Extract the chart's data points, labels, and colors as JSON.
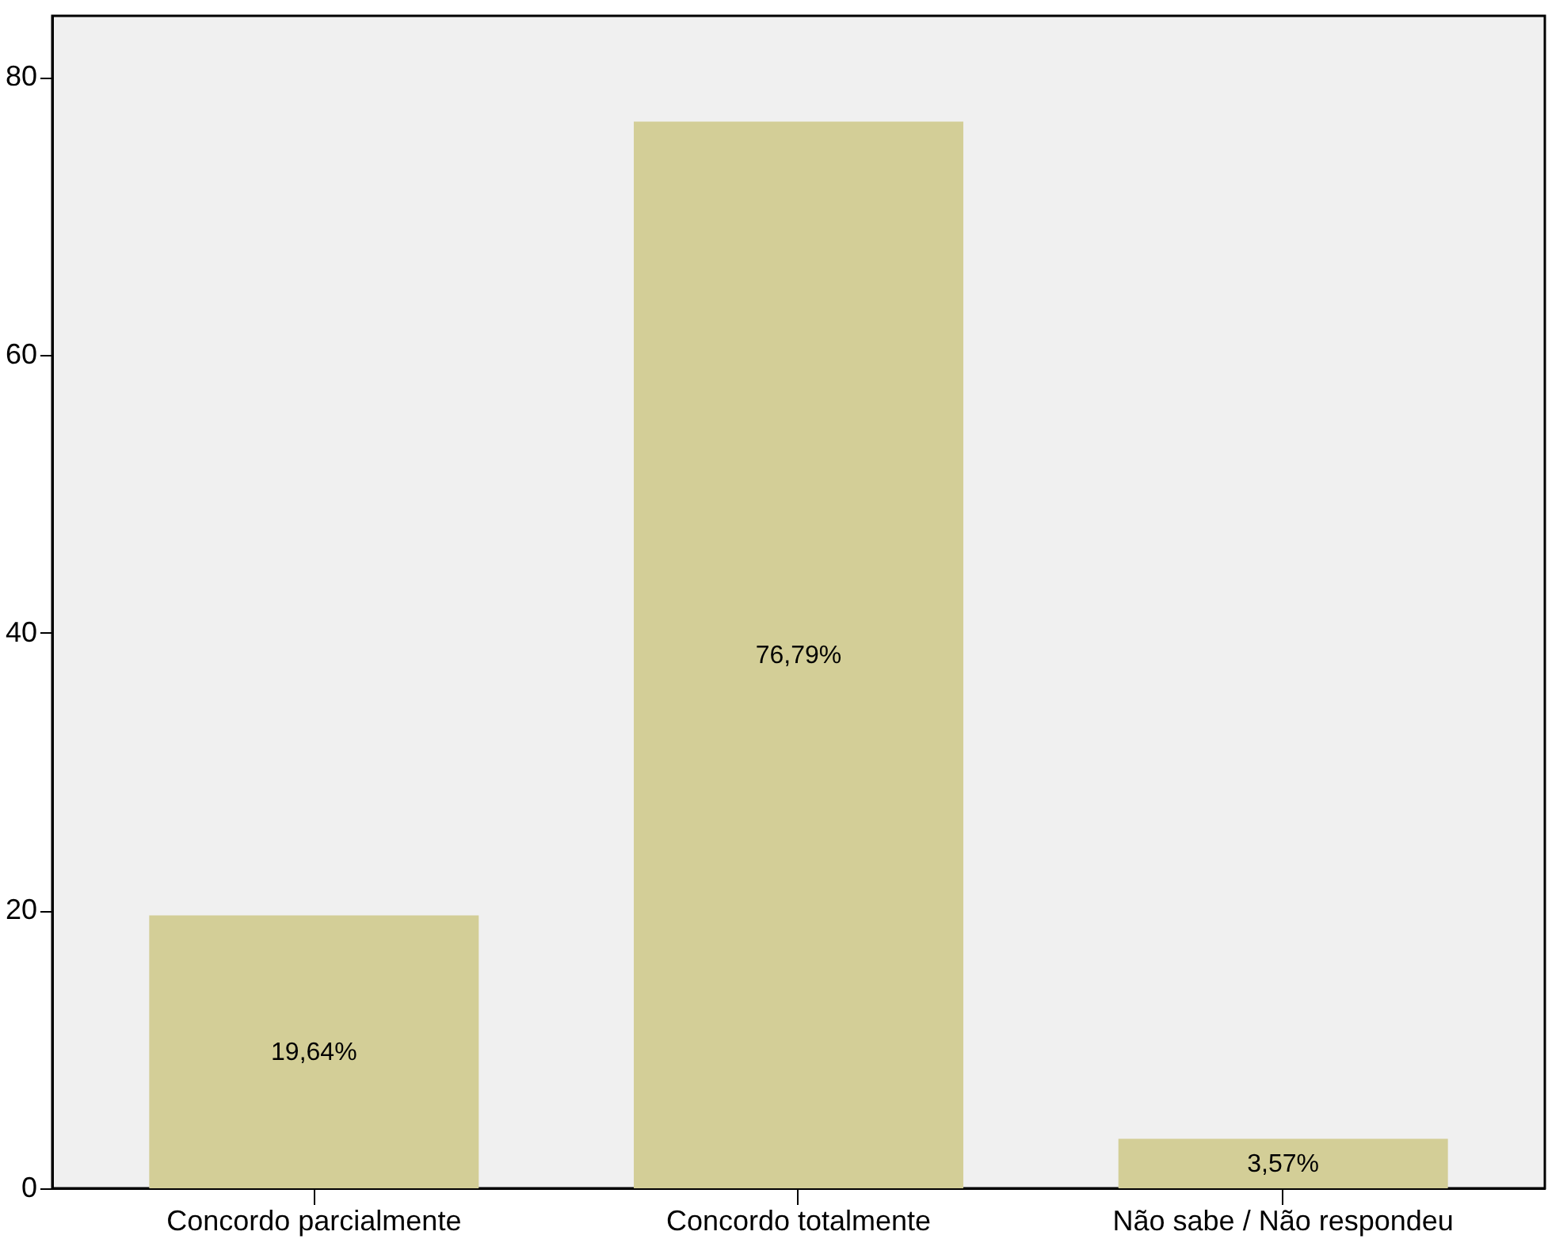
{
  "chart_data": {
    "type": "bar",
    "categories": [
      "Concordo parcialmente",
      "Concordo totalmente",
      "Não sabe / Não respondeu"
    ],
    "values": [
      19.64,
      76.79,
      3.57
    ],
    "value_labels": [
      "19,64%",
      "76,79%",
      "3,57%"
    ],
    "color": "#d3ce97",
    "ylim": [
      0,
      84.4
    ],
    "yticks": [
      0,
      20,
      40,
      60,
      80
    ],
    "grid": false
  }
}
